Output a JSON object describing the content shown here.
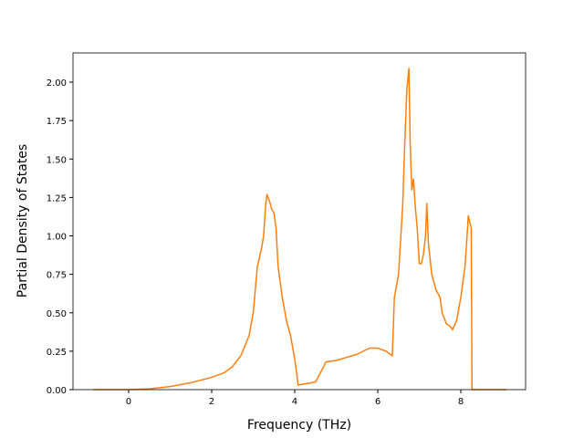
{
  "chart_data": {
    "type": "line",
    "xlabel": "Frequency (THz)",
    "ylabel": "Partial Density of States",
    "xlim": [
      -1.34,
      9.56
    ],
    "ylim": [
      0,
      2.19
    ],
    "xticks": [
      0,
      2,
      4,
      6,
      8
    ],
    "yticks": [
      {
        "value": 0,
        "label": "0.00"
      },
      {
        "value": 0.25,
        "label": "0.25"
      },
      {
        "value": 0.5,
        "label": "0.50"
      },
      {
        "value": 0.75,
        "label": "0.75"
      },
      {
        "value": 1,
        "label": "1.00"
      },
      {
        "value": 1.25,
        "label": "1.25"
      },
      {
        "value": 1.5,
        "label": "1.50"
      },
      {
        "value": 1.75,
        "label": "1.75"
      },
      {
        "value": 2,
        "label": "2.00"
      }
    ],
    "grid": false,
    "x": [
      -0.85,
      0,
      0.5,
      1,
      1.5,
      2,
      2.3,
      2.5,
      2.7,
      2.9,
      3.0,
      3.05,
      3.1,
      3.2,
      3.25,
      3.3,
      3.33,
      3.4,
      3.45,
      3.5,
      3.55,
      3.6,
      3.7,
      3.8,
      3.9,
      4.0,
      4.05,
      4.08,
      4.5,
      4.6,
      4.7,
      4.75,
      5.0,
      5.5,
      5.8,
      6.0,
      6.2,
      6.35,
      6.4,
      6.5,
      6.6,
      6.65,
      6.7,
      6.75,
      6.78,
      6.82,
      6.86,
      6.9,
      6.95,
      7.0,
      7.05,
      7.1,
      7.15,
      7.18,
      7.22,
      7.3,
      7.4,
      7.5,
      7.55,
      7.65,
      7.75,
      7.8,
      7.9,
      8.0,
      8.1,
      8.15,
      8.18,
      8.25,
      8.27,
      9.1
    ],
    "series": [
      {
        "color": "#ff7f0e",
        "values": [
          0,
          0,
          0.005,
          0.02,
          0.045,
          0.08,
          0.11,
          0.15,
          0.22,
          0.35,
          0.5,
          0.65,
          0.8,
          0.92,
          1.0,
          1.2,
          1.27,
          1.22,
          1.17,
          1.15,
          1.05,
          0.8,
          0.6,
          0.45,
          0.35,
          0.2,
          0.1,
          0.03,
          0.05,
          0.1,
          0.15,
          0.18,
          0.19,
          0.23,
          0.27,
          0.27,
          0.25,
          0.22,
          0.6,
          0.75,
          1.2,
          1.6,
          1.95,
          2.09,
          1.6,
          1.3,
          1.37,
          1.2,
          1.05,
          0.82,
          0.82,
          0.88,
          1.0,
          1.21,
          0.95,
          0.75,
          0.65,
          0.6,
          0.5,
          0.43,
          0.41,
          0.39,
          0.45,
          0.6,
          0.8,
          1.0,
          1.13,
          1.05,
          0,
          0
        ]
      }
    ]
  }
}
